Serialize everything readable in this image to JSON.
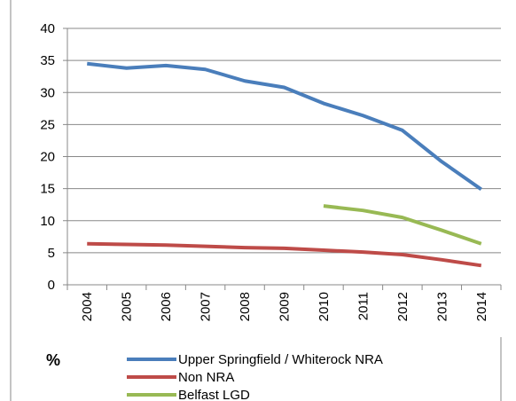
{
  "chart_data": {
    "type": "line",
    "ylabel": "%",
    "categories": [
      "2004",
      "2005",
      "2006",
      "2007",
      "2008",
      "2009",
      "2010",
      "2011",
      "2012",
      "2013",
      "2014"
    ],
    "series": [
      {
        "name": "Upper Springfield / Whiterock NRA",
        "color": "#4a7ebb",
        "values": [
          34.5,
          33.8,
          34.2,
          33.6,
          31.8,
          30.8,
          28.3,
          26.4,
          24.1,
          19.2,
          14.9
        ]
      },
      {
        "name": "Non NRA",
        "color": "#be4b48",
        "values": [
          6.4,
          6.3,
          6.2,
          6.0,
          5.8,
          5.7,
          5.4,
          5.1,
          4.7,
          3.9,
          3.0
        ]
      },
      {
        "name": "Belfast LGD",
        "color": "#98b954",
        "values": [
          null,
          null,
          null,
          null,
          null,
          null,
          12.3,
          11.6,
          10.5,
          8.5,
          6.4
        ]
      }
    ],
    "ylim": [
      0,
      40
    ],
    "yticks": [
      0,
      5,
      10,
      15,
      20,
      25,
      30,
      35,
      40
    ],
    "grid": true,
    "legend": "bottom"
  }
}
